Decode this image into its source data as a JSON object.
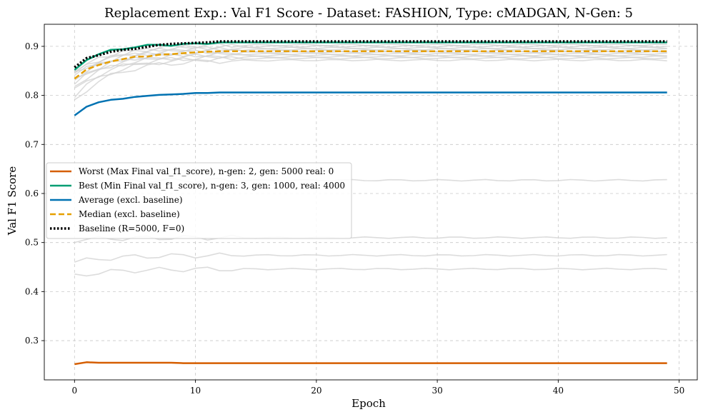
{
  "chart_data": {
    "type": "line",
    "title": "Replacement Exp.: Val F1 Score - Dataset: FASHION, Type: cMADGAN, N-Gen: 5",
    "xlabel": "Epoch",
    "ylabel": "Val F1 Score",
    "xlim": [
      -2.5,
      51.5
    ],
    "ylim": [
      0.22,
      0.945
    ],
    "xticks": [
      0,
      10,
      20,
      30,
      40,
      50
    ],
    "yticks": [
      0.3,
      0.4,
      0.5,
      0.6,
      0.7,
      0.8,
      0.9
    ],
    "grid": true,
    "legend_position": "center-left",
    "background_series": [
      {
        "start": 0.46,
        "end": 0.474,
        "color": "#d0d0d0"
      },
      {
        "start": 0.432,
        "end": 0.446,
        "color": "#d0d0d0"
      },
      {
        "start": 0.505,
        "end": 0.51,
        "color": "#d0d0d0"
      },
      {
        "start": 0.62,
        "end": 0.627,
        "color": "#d0d0d0"
      },
      {
        "start": 0.79,
        "end": 0.872,
        "color": "#d0d0d0"
      },
      {
        "start": 0.8,
        "end": 0.876,
        "color": "#d0d0d0"
      },
      {
        "start": 0.81,
        "end": 0.879,
        "color": "#d0d0d0"
      },
      {
        "start": 0.82,
        "end": 0.882,
        "color": "#d0d0d0"
      },
      {
        "start": 0.825,
        "end": 0.885,
        "color": "#d0d0d0"
      },
      {
        "start": 0.83,
        "end": 0.888,
        "color": "#d0d0d0"
      },
      {
        "start": 0.835,
        "end": 0.891,
        "color": "#d0d0d0"
      },
      {
        "start": 0.84,
        "end": 0.894,
        "color": "#d0d0d0"
      },
      {
        "start": 0.845,
        "end": 0.897,
        "color": "#d0d0d0"
      },
      {
        "start": 0.85,
        "end": 0.9,
        "color": "#d0d0d0"
      },
      {
        "start": 0.845,
        "end": 0.903,
        "color": "#d0d0d0"
      }
    ],
    "series": [
      {
        "name": "Worst (Max Final val_f1_score), n-gen: 2, gen: 5000 real: 0",
        "color": "#d55e00",
        "dash": "solid",
        "x": [
          0,
          1,
          2,
          3,
          4,
          5,
          6,
          7,
          8,
          9,
          10,
          15,
          20,
          25,
          30,
          35,
          40,
          45,
          49
        ],
        "y": [
          0.252,
          0.256,
          0.255,
          0.255,
          0.255,
          0.255,
          0.255,
          0.255,
          0.255,
          0.254,
          0.254,
          0.254,
          0.254,
          0.254,
          0.254,
          0.254,
          0.254,
          0.254,
          0.254
        ]
      },
      {
        "name": "Best (Min Final val_f1_score), n-gen: 3, gen: 1000, real: 4000",
        "color": "#009e73",
        "dash": "solid",
        "x": [
          0,
          1,
          2,
          3,
          4,
          5,
          6,
          7,
          8,
          9,
          10,
          11,
          12,
          15,
          20,
          30,
          40,
          49
        ],
        "y": [
          0.852,
          0.872,
          0.884,
          0.893,
          0.894,
          0.898,
          0.903,
          0.903,
          0.901,
          0.905,
          0.906,
          0.905,
          0.908,
          0.908,
          0.908,
          0.908,
          0.908,
          0.908
        ]
      },
      {
        "name": "Average (excl. baseline)",
        "color": "#0072b2",
        "dash": "solid",
        "x": [
          0,
          1,
          2,
          3,
          4,
          5,
          6,
          7,
          8,
          9,
          10,
          11,
          12,
          15,
          20,
          30,
          40,
          49
        ],
        "y": [
          0.759,
          0.777,
          0.786,
          0.791,
          0.793,
          0.797,
          0.799,
          0.801,
          0.802,
          0.803,
          0.805,
          0.805,
          0.806,
          0.806,
          0.806,
          0.806,
          0.806,
          0.806
        ]
      },
      {
        "name": "Median (excl. baseline)",
        "color": "#e69f00",
        "dash": "dashed",
        "x": [
          0,
          1,
          2,
          3,
          4,
          5,
          6,
          7,
          8,
          9,
          10,
          11,
          12,
          15,
          20,
          30,
          40,
          49
        ],
        "y": [
          0.834,
          0.853,
          0.862,
          0.869,
          0.874,
          0.879,
          0.879,
          0.883,
          0.884,
          0.886,
          0.888,
          0.889,
          0.89,
          0.89,
          0.89,
          0.89,
          0.89,
          0.89
        ]
      },
      {
        "name": "Baseline (R=5000, F=0)",
        "color": "#000000",
        "dash": "dotted",
        "x": [
          0,
          1,
          2,
          3,
          4,
          5,
          6,
          7,
          8,
          9,
          10,
          11,
          12,
          15,
          20,
          30,
          40,
          49
        ],
        "y": [
          0.857,
          0.876,
          0.882,
          0.889,
          0.893,
          0.895,
          0.899,
          0.903,
          0.905,
          0.906,
          0.907,
          0.908,
          0.91,
          0.91,
          0.91,
          0.91,
          0.91,
          0.91
        ]
      }
    ]
  }
}
